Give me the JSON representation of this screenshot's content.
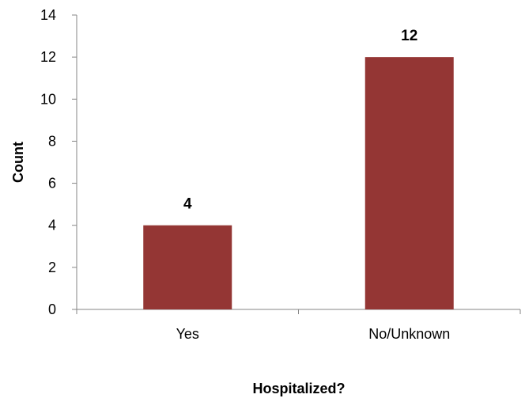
{
  "chart_data": {
    "type": "bar",
    "categories": [
      "Yes",
      "No/Unknown"
    ],
    "values": [
      4,
      12
    ],
    "data_labels": [
      "4",
      "12"
    ],
    "xlabel": "Hospitalized?",
    "ylabel": "Count",
    "ylim": [
      0,
      14
    ],
    "yticks": [
      "0",
      "2",
      "4",
      "6",
      "8",
      "10",
      "12",
      "14"
    ],
    "grid": false,
    "legend": "none",
    "bar_color": "#943634"
  }
}
